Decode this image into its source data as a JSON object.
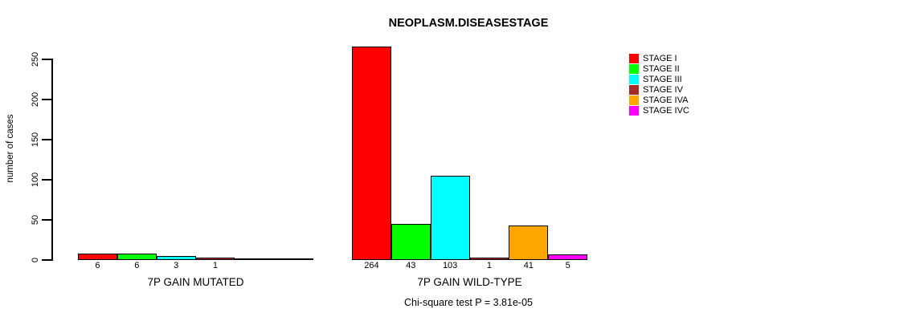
{
  "chart_data": {
    "type": "bar",
    "title": "NEOPLASM.DISEASESTAGE",
    "ylabel": "number of cases",
    "ylim": [
      0,
      250
    ],
    "yticks": [
      0,
      50,
      100,
      150,
      200,
      250
    ],
    "grid": false,
    "legend_position": "right",
    "categories": [
      "7P GAIN MUTATED",
      "7P GAIN WILD-TYPE"
    ],
    "series": [
      {
        "name": "STAGE I",
        "color": "#FF0000",
        "values": [
          6,
          264
        ]
      },
      {
        "name": "STAGE II",
        "color": "#00FF00",
        "values": [
          6,
          43
        ]
      },
      {
        "name": "STAGE III",
        "color": "#00FFFF",
        "values": [
          3,
          103
        ]
      },
      {
        "name": "STAGE IV",
        "color": "#A52A2A",
        "values": [
          1,
          1
        ]
      },
      {
        "name": "STAGE IVA",
        "color": "#FFA500",
        "values": [
          0,
          41
        ]
      },
      {
        "name": "STAGE IVC",
        "color": "#FF00FF",
        "values": [
          0,
          5
        ]
      }
    ],
    "bar_value_labels": [
      [
        "6",
        "6",
        "3",
        "1",
        "",
        ""
      ],
      [
        "264",
        "43",
        "103",
        "1",
        "41",
        "5"
      ]
    ],
    "annotation": "Chi-square test P = 3.81e-05"
  }
}
